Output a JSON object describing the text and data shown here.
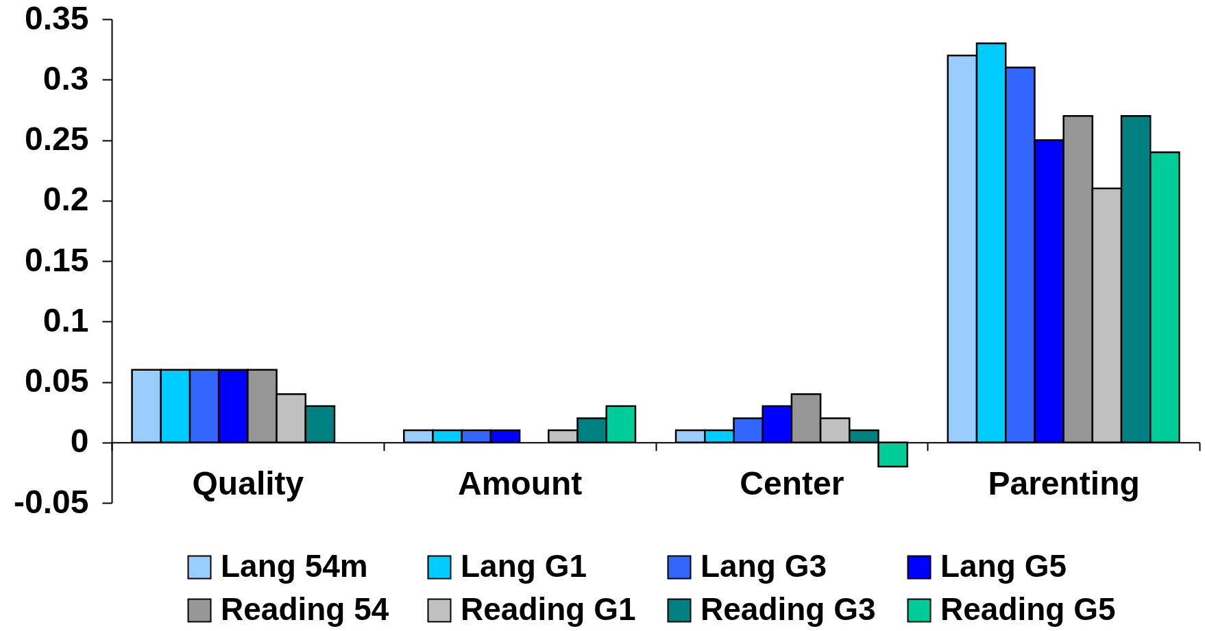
{
  "chart_data": {
    "type": "bar",
    "categories": [
      "Quality",
      "Amount",
      "Center",
      "Parenting"
    ],
    "series": [
      {
        "name": "Lang 54m",
        "color": "#99ccff",
        "values": [
          0.06,
          0.01,
          0.01,
          0.32
        ]
      },
      {
        "name": "Lang G1",
        "color": "#00ccff",
        "values": [
          0.06,
          0.01,
          0.01,
          0.33
        ]
      },
      {
        "name": "Lang G3",
        "color": "#3366ff",
        "values": [
          0.06,
          0.01,
          0.02,
          0.31
        ]
      },
      {
        "name": "Lang G5",
        "color": "#0000ff",
        "values": [
          0.06,
          0.01,
          0.03,
          0.25
        ]
      },
      {
        "name": "Reading 54",
        "color": "#969696",
        "values": [
          0.06,
          null,
          0.04,
          0.27
        ]
      },
      {
        "name": "Reading G1",
        "color": "#c0c0c0",
        "values": [
          0.04,
          0.01,
          0.02,
          0.21
        ]
      },
      {
        "name": "Reading G3",
        "color": "#008080",
        "values": [
          0.03,
          0.02,
          0.01,
          0.27
        ]
      },
      {
        "name": "Reading G5",
        "color": "#00cc99",
        "values": [
          null,
          0.03,
          -0.02,
          0.24
        ]
      }
    ],
    "ylim": [
      -0.05,
      0.35
    ],
    "yticks": [
      -0.05,
      0,
      0.05,
      0.1,
      0.15,
      0.2,
      0.25,
      0.3,
      0.35
    ],
    "grid": false,
    "legend": "bottom"
  }
}
